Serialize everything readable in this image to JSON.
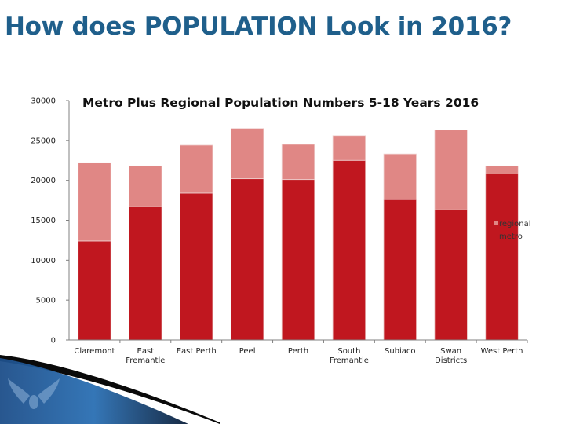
{
  "slide": {
    "title": "How does POPULATION Look in 2016?"
  },
  "colors": {
    "metro": "#c0171f",
    "regional": "#e08785",
    "title": "#1f5f8b",
    "axis": "#808080"
  },
  "chart_data": {
    "type": "bar",
    "stacked": true,
    "title": "Metro Plus Regional Population Numbers 5-18 Years 2016",
    "xlabel": "",
    "ylabel": "",
    "ylim": [
      0,
      30000
    ],
    "yticks": [
      0,
      5000,
      10000,
      15000,
      20000,
      25000,
      30000
    ],
    "grid": false,
    "legend_position": "right",
    "categories": [
      "Claremont",
      "East Fremantle",
      "East Perth",
      "Peel",
      "Perth",
      "South Fremantle",
      "Subiaco",
      "Swan Districts",
      "West Perth"
    ],
    "series": [
      {
        "name": "metro",
        "values": [
          12400,
          16700,
          18400,
          20200,
          20100,
          22500,
          17600,
          16300,
          20800
        ]
      },
      {
        "name": "regional",
        "values": [
          9800,
          5100,
          6000,
          6300,
          4400,
          3100,
          5700,
          10000,
          1000
        ]
      }
    ]
  }
}
